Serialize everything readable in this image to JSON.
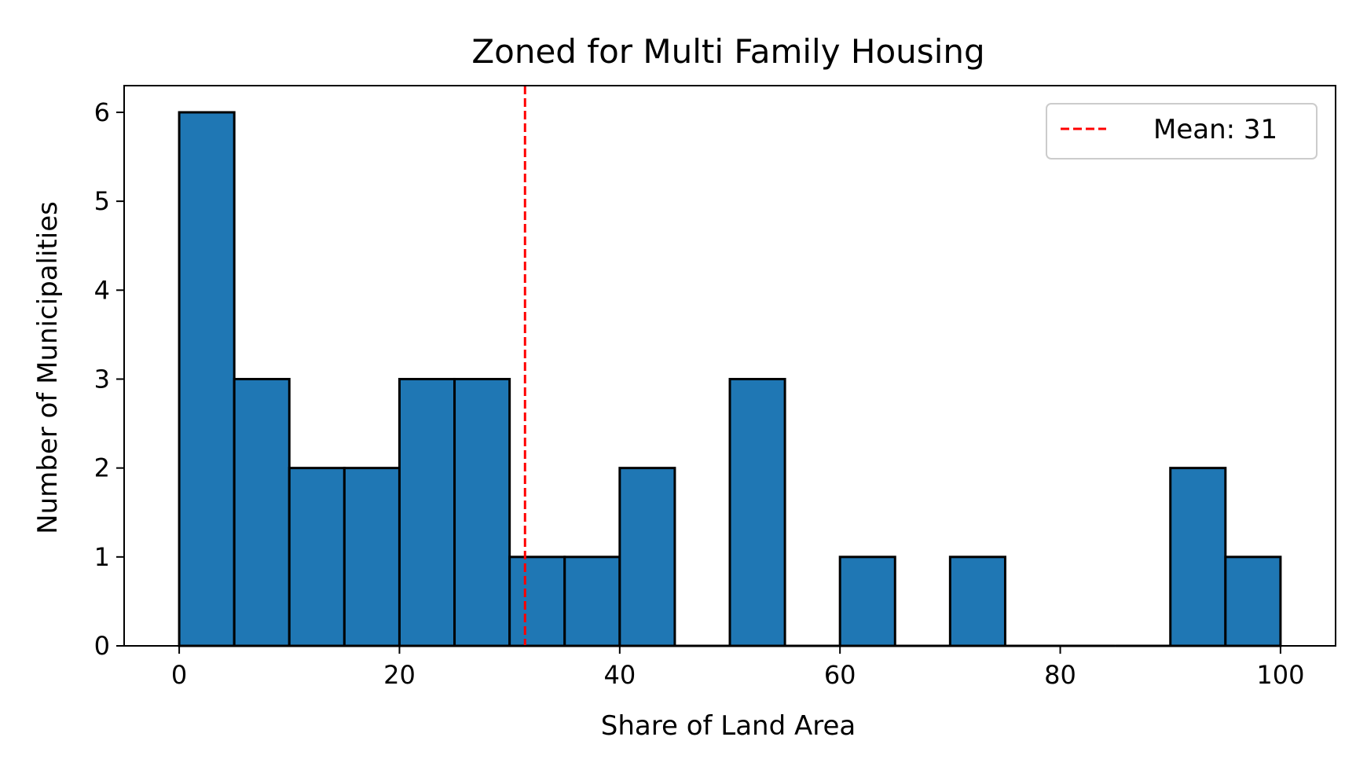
{
  "chart_data": {
    "type": "bar",
    "title": "Zoned for Multi Family Housing",
    "xlabel": "Share of Land Area",
    "ylabel": "Number of Municipalities",
    "xlim": [
      -5,
      105
    ],
    "ylim": [
      0,
      6.3
    ],
    "xticks": [
      0,
      20,
      40,
      60,
      80,
      100
    ],
    "yticks": [
      0,
      1,
      2,
      3,
      4,
      5,
      6
    ],
    "bin_width": 5,
    "bins": [
      {
        "start": 0,
        "end": 5,
        "count": 6
      },
      {
        "start": 5,
        "end": 10,
        "count": 3
      },
      {
        "start": 10,
        "end": 15,
        "count": 2
      },
      {
        "start": 15,
        "end": 20,
        "count": 2
      },
      {
        "start": 20,
        "end": 25,
        "count": 3
      },
      {
        "start": 25,
        "end": 30,
        "count": 3
      },
      {
        "start": 30,
        "end": 35,
        "count": 1
      },
      {
        "start": 35,
        "end": 40,
        "count": 1
      },
      {
        "start": 40,
        "end": 45,
        "count": 2
      },
      {
        "start": 45,
        "end": 50,
        "count": 0
      },
      {
        "start": 50,
        "end": 55,
        "count": 3
      },
      {
        "start": 55,
        "end": 60,
        "count": 0
      },
      {
        "start": 60,
        "end": 65,
        "count": 1
      },
      {
        "start": 65,
        "end": 70,
        "count": 0
      },
      {
        "start": 70,
        "end": 75,
        "count": 1
      },
      {
        "start": 75,
        "end": 80,
        "count": 0
      },
      {
        "start": 80,
        "end": 85,
        "count": 0
      },
      {
        "start": 85,
        "end": 90,
        "count": 0
      },
      {
        "start": 90,
        "end": 95,
        "count": 2
      },
      {
        "start": 95,
        "end": 100,
        "count": 1
      }
    ],
    "mean_line": {
      "value": 31.4,
      "label": "Mean: 31",
      "color": "#ff0000",
      "style": "dashed"
    },
    "bar_color": "#1f77b4",
    "edge_color": "#000000",
    "grid": false,
    "legend_position": "top-right"
  }
}
